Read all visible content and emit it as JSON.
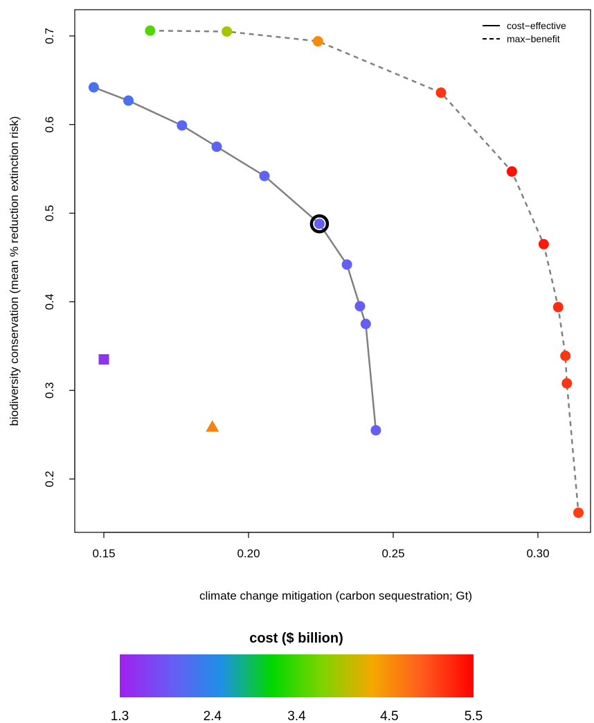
{
  "chart_data": {
    "type": "scatter",
    "title": "",
    "xlabel": "climate change mitigation (carbon sequestration; Gt)",
    "ylabel": "biodiversity conservation (mean % reduction extinction risk)",
    "xlim": [
      0.14,
      0.315
    ],
    "ylim": [
      0.16,
      0.71
    ],
    "xticks": [
      0.15,
      0.2,
      0.25,
      0.3
    ],
    "xtick_labels": [
      "0.15",
      "0.20",
      "0.25",
      "0.30"
    ],
    "yticks": [
      0.2,
      0.3,
      0.4,
      0.5,
      0.6,
      0.7
    ],
    "ytick_labels": [
      "0.2",
      "0.3",
      "0.4",
      "0.5",
      "0.6",
      "0.7"
    ],
    "grid": false,
    "legend_position": "top-right",
    "legend": [
      {
        "label": "cost−effective",
        "line": "solid"
      },
      {
        "label": "max−benefit",
        "line": "dashed"
      }
    ],
    "series": [
      {
        "line": "solid",
        "line_color": "#808080",
        "points": [
          {
            "x": 0.1465,
            "y": 0.642,
            "cost": 2.15
          },
          {
            "x": 0.1585,
            "y": 0.627,
            "cost": 2.15
          },
          {
            "x": 0.177,
            "y": 0.599,
            "cost": 2.05
          },
          {
            "x": 0.189,
            "y": 0.575,
            "cost": 2.0
          },
          {
            "x": 0.2055,
            "y": 0.542,
            "cost": 2.0
          },
          {
            "x": 0.2245,
            "y": 0.488,
            "cost": 1.95
          },
          {
            "x": 0.234,
            "y": 0.442,
            "cost": 1.95
          },
          {
            "x": 0.2385,
            "y": 0.395,
            "cost": 1.95
          },
          {
            "x": 0.2405,
            "y": 0.375,
            "cost": 1.95
          },
          {
            "x": 0.244,
            "y": 0.255,
            "cost": 1.95
          }
        ]
      },
      {
        "line": "dashed",
        "line_color": "#808080",
        "points": [
          {
            "x": 0.166,
            "y": 0.706,
            "cost": 3.5
          },
          {
            "x": 0.1925,
            "y": 0.705,
            "cost": 3.9
          },
          {
            "x": 0.224,
            "y": 0.694,
            "cost": 4.55
          },
          {
            "x": 0.2665,
            "y": 0.636,
            "cost": 5.15
          },
          {
            "x": 0.291,
            "y": 0.547,
            "cost": 5.4
          },
          {
            "x": 0.302,
            "y": 0.465,
            "cost": 5.35
          },
          {
            "x": 0.307,
            "y": 0.394,
            "cost": 5.2
          },
          {
            "x": 0.3095,
            "y": 0.339,
            "cost": 5.15
          },
          {
            "x": 0.31,
            "y": 0.308,
            "cost": 5.15
          },
          {
            "x": 0.314,
            "y": 0.162,
            "cost": 5.1
          }
        ]
      }
    ],
    "highlight": {
      "x": 0.2245,
      "y": 0.488
    },
    "extra_points": [
      {
        "shape": "square",
        "x": 0.15,
        "y": 0.335,
        "cost": 1.5
      },
      {
        "shape": "triangle",
        "x": 0.1875,
        "y": 0.259,
        "cost": 4.6
      }
    ],
    "colorbar": {
      "title": "cost ($ billion)",
      "min": 1.3,
      "max": 5.5,
      "ticks": [
        1.3,
        2.4,
        3.4,
        4.5,
        5.5
      ],
      "tick_labels": [
        "1.3",
        "2.4",
        "3.4",
        "4.5",
        "5.5"
      ],
      "colors": [
        "#a020f0",
        "#6a5af5",
        "#1e90e8",
        "#00d800",
        "#7dd400",
        "#f5a800",
        "#ff5a1e",
        "#ff0000"
      ]
    }
  }
}
